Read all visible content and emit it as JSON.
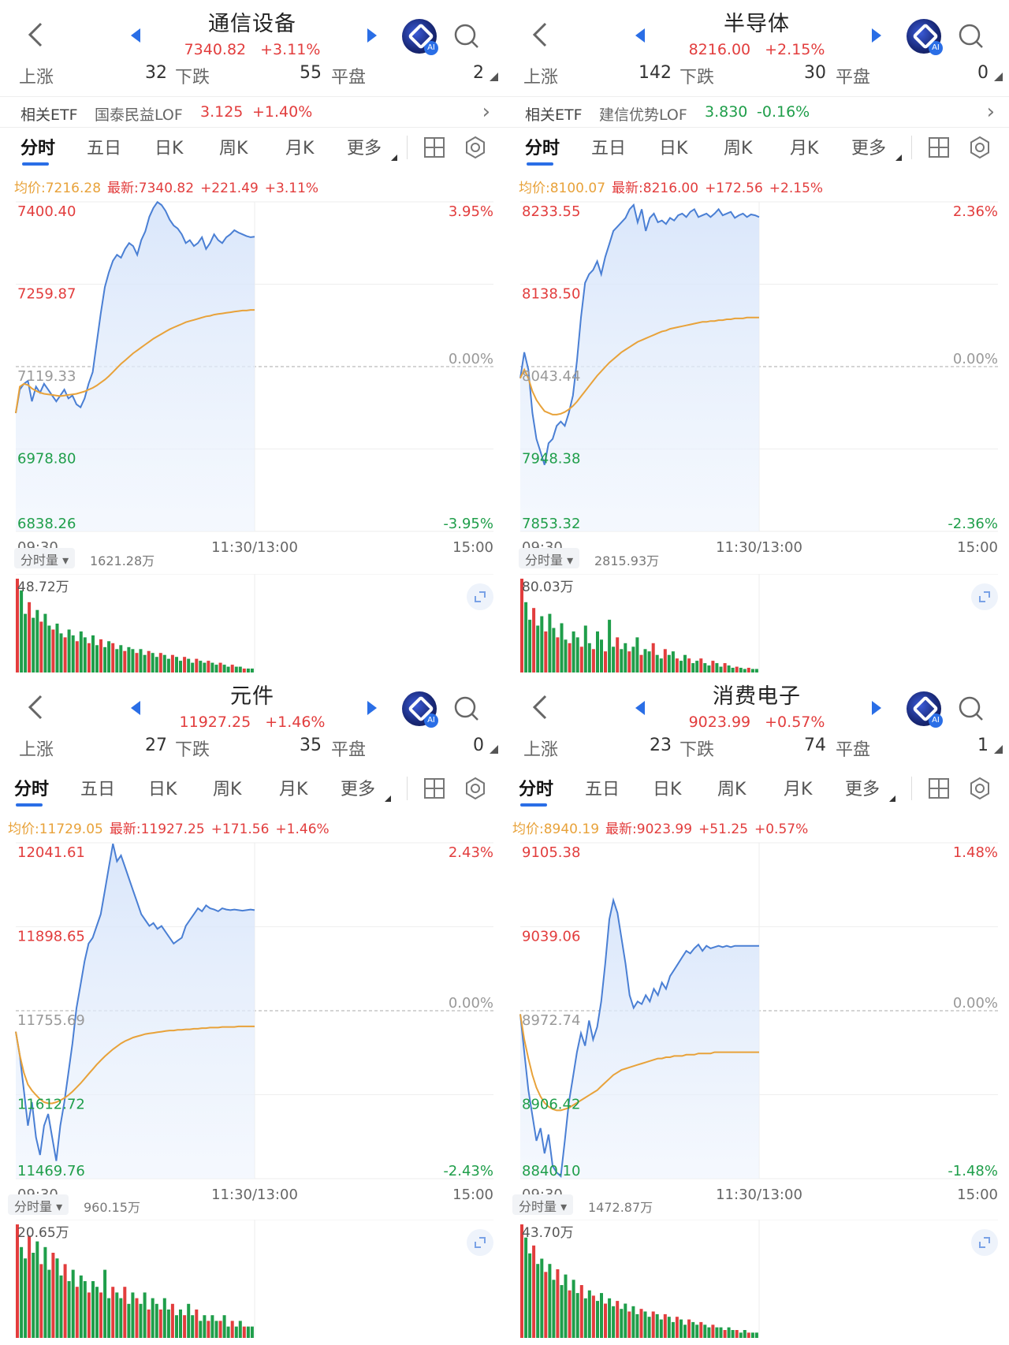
{
  "panels": [
    {
      "title": "通信设备",
      "price": "7340.82",
      "change_pct": "+3.11%",
      "breadth": {
        "up_label": "上涨",
        "up": "32",
        "down_label": "下跌",
        "down": "55",
        "flat_label": "平盘",
        "flat": "2"
      },
      "etf": {
        "label": "相关ETF",
        "name": "国泰民益LOF",
        "price": "3.125",
        "change": "+1.40%",
        "change_color": "#e23d3d"
      },
      "tabs": [
        "分时",
        "五日",
        "日K",
        "周K",
        "月K",
        "更多"
      ],
      "legend": {
        "avg": "均价:7216.28",
        "last": "最新:7340.82",
        "change": "+221.49",
        "pct": "+3.11%"
      },
      "axis": {
        "y_left": [
          "7400.40",
          "7259.87",
          "7119.33",
          "6978.80",
          "6838.26"
        ],
        "y_right": [
          "3.95%",
          "0.00%",
          "-3.95%"
        ],
        "time": [
          "09:30",
          "11:30/13:00",
          "15:00"
        ]
      },
      "volume": {
        "selector": "分时量",
        "total": "1621.28万",
        "max": "48.72万"
      },
      "chart_data": {
        "type": "line",
        "ylim": [
          6838.26,
          7400.4
        ],
        "prev_close": 7119.33,
        "x_range": [
          0,
          240
        ],
        "series": [
          {
            "values": [
              7040,
              7080,
              7090,
              7095,
              7060,
              7085,
              7075,
              7090,
              7080,
              7070,
              7060,
              7070,
              7080,
              7065,
              7070,
              7055,
              7050,
              7065,
              7090,
              7110,
              7160,
              7210,
              7255,
              7280,
              7300,
              7310,
              7305,
              7320,
              7330,
              7325,
              7310,
              7335,
              7350,
              7375,
              7390,
              7400,
              7395,
              7385,
              7370,
              7360,
              7355,
              7345,
              7330,
              7335,
              7325,
              7330,
              7340,
              7320,
              7330,
              7345,
              7335,
              7330,
              7340,
              7345,
              7352,
              7348,
              7345,
              7342,
              7340,
              7341
            ]
          },
          {
            "values": [
              7040,
              7085,
              7090,
              7088,
              7082,
              7078,
              7075,
              7073,
              7072,
              7071,
              7070,
              7069,
              7070,
              7071,
              7072,
              7073,
              7075,
              7077,
              7080,
              7083,
              7087,
              7092,
              7097,
              7103,
              7110,
              7117,
              7124,
              7130,
              7136,
              7142,
              7147,
              7152,
              7157,
              7162,
              7167,
              7171,
              7175,
              7179,
              7183,
              7186,
              7189,
              7192,
              7195,
              7197,
              7199,
              7201,
              7203,
              7205,
              7206,
              7208,
              7209,
              7210,
              7211,
              7212,
              7213,
              7214,
              7215,
              7215,
              7216,
              7216
            ]
          }
        ],
        "volume_values": [
          48,
          42,
          30,
          36,
          28,
          32,
          26,
          30,
          24,
          22,
          25,
          20,
          18,
          22,
          19,
          16,
          21,
          18,
          15,
          19,
          14,
          17,
          13,
          16,
          15,
          12,
          14,
          11,
          13,
          12,
          10,
          12,
          9,
          11,
          10,
          8,
          10,
          9,
          7,
          9,
          8,
          6,
          8,
          7,
          5,
          7,
          6,
          5,
          6,
          5,
          4,
          5,
          4,
          3,
          4,
          3,
          3,
          2,
          2,
          2
        ]
      }
    },
    {
      "title": "半导体",
      "price": "8216.00",
      "change_pct": "+2.15%",
      "breadth": {
        "up_label": "上涨",
        "up": "142",
        "down_label": "下跌",
        "down": "30",
        "flat_label": "平盘",
        "flat": "0"
      },
      "etf": {
        "label": "相关ETF",
        "name": "建信优势LOF",
        "price": "3.830",
        "change": "-0.16%",
        "change_color": "#1f9e4a"
      },
      "tabs": [
        "分时",
        "五日",
        "日K",
        "周K",
        "月K",
        "更多"
      ],
      "legend": {
        "avg": "均价:8100.07",
        "last": "最新:8216.00",
        "change": "+172.56",
        "pct": "+2.15%"
      },
      "axis": {
        "y_left": [
          "8233.55",
          "8138.50",
          "8043.44",
          "7948.38",
          "7853.32"
        ],
        "y_right": [
          "2.36%",
          "0.00%",
          "-2.36%"
        ],
        "time": [
          "09:30",
          "11:30/13:00",
          "15:00"
        ]
      },
      "volume": {
        "selector": "分时量",
        "total": "2815.93万",
        "max": "80.03万"
      },
      "chart_data": {
        "type": "line",
        "ylim": [
          7853.32,
          8233.55
        ],
        "prev_close": 8043.44,
        "x_range": [
          0,
          240
        ],
        "series": [
          {
            "values": [
              8030,
              8060,
              8040,
              7990,
              7960,
              7945,
              7930,
              7955,
              7960,
              7975,
              7980,
              7975,
              7990,
              8010,
              8050,
              8100,
              8140,
              8150,
              8155,
              8165,
              8150,
              8170,
              8185,
              8200,
              8205,
              8210,
              8215,
              8225,
              8230,
              8210,
              8225,
              8200,
              8215,
              8220,
              8210,
              8212,
              8208,
              8215,
              8212,
              8218,
              8220,
              8216,
              8222,
              8225,
              8216,
              8218,
              8220,
              8216,
              8220,
              8225,
              8218,
              8220,
              8222,
              8215,
              8218,
              8220,
              8216,
              8219,
              8218,
              8216
            ]
          },
          {
            "values": [
              8030,
              8040,
              8030,
              8015,
              8005,
              7998,
              7992,
              7990,
              7988,
              7988,
              7989,
              7991,
              7994,
              7998,
              8003,
              8009,
              8015,
              8021,
              8027,
              8033,
              8038,
              8043,
              8048,
              8052,
              8056,
              8060,
              8063,
              8066,
              8069,
              8072,
              8074,
              8076,
              8078,
              8080,
              8082,
              8084,
              8085,
              8087,
              8088,
              8089,
              8090,
              8091,
              8092,
              8093,
              8094,
              8095,
              8095,
              8096,
              8096,
              8097,
              8097,
              8098,
              8098,
              8099,
              8099,
              8099,
              8100,
              8100,
              8100,
              8100
            ]
          }
        ],
        "volume_values": [
          80,
          60,
          45,
          55,
          40,
          48,
          35,
          50,
          38,
          30,
          42,
          28,
          25,
          35,
          30,
          22,
          40,
          25,
          20,
          35,
          28,
          18,
          45,
          22,
          30,
          20,
          25,
          18,
          22,
          30,
          15,
          20,
          18,
          25,
          15,
          12,
          20,
          15,
          18,
          12,
          10,
          15,
          12,
          8,
          10,
          12,
          8,
          6,
          10,
          8,
          5,
          8,
          6,
          4,
          5,
          4,
          3,
          4,
          3,
          3
        ]
      }
    },
    {
      "title": "元件",
      "price": "11927.25",
      "change_pct": "+1.46%",
      "breadth": {
        "up_label": "上涨",
        "up": "27",
        "down_label": "下跌",
        "down": "35",
        "flat_label": "平盘",
        "flat": "0"
      },
      "tabs": [
        "分时",
        "五日",
        "日K",
        "周K",
        "月K",
        "更多"
      ],
      "legend": {
        "avg": "均价:11729.05",
        "last": "最新:11927.25",
        "change": "+171.56",
        "pct": "+1.46%"
      },
      "axis": {
        "y_left": [
          "12041.61",
          "11898.65",
          "11755.69",
          "11612.72",
          "11469.76"
        ],
        "y_right": [
          "2.43%",
          "0.00%",
          "-2.43%"
        ],
        "time": [
          "09:30",
          "11:30/13:00",
          "15:00"
        ]
      },
      "volume": {
        "selector": "分时量",
        "total": "960.15万",
        "max": "20.65万"
      },
      "chart_data": {
        "type": "line",
        "ylim": [
          11469.76,
          12041.61
        ],
        "prev_close": 11755.69,
        "x_range": [
          0,
          240
        ],
        "series": [
          {
            "values": [
              11720,
              11680,
              11620,
              11560,
              11600,
              11540,
              11510,
              11560,
              11580,
              11540,
              11500,
              11560,
              11600,
              11650,
              11700,
              11760,
              11800,
              11840,
              11870,
              11880,
              11900,
              11920,
              11960,
              12000,
              12040,
              12010,
              12020,
              12000,
              11980,
              11960,
              11940,
              11920,
              11910,
              11900,
              11905,
              11895,
              11900,
              11890,
              11880,
              11870,
              11875,
              11880,
              11900,
              11910,
              11920,
              11930,
              11925,
              11935,
              11930,
              11928,
              11925,
              11930,
              11928,
              11927,
              11928,
              11927,
              11926,
              11927,
              11928,
              11927
            ]
          },
          {
            "values": [
              11720,
              11680,
              11650,
              11630,
              11620,
              11612,
              11605,
              11600,
              11598,
              11598,
              11600,
              11603,
              11607,
              11612,
              11618,
              11625,
              11632,
              11640,
              11648,
              11656,
              11664,
              11671,
              11678,
              11684,
              11690,
              11695,
              11700,
              11704,
              11707,
              11710,
              11712,
              11714,
              11716,
              11717,
              11718,
              11719,
              11720,
              11721,
              11722,
              11722,
              11723,
              11723,
              11724,
              11724,
              11725,
              11725,
              11726,
              11726,
              11727,
              11727,
              11727,
              11728,
              11728,
              11728,
              11728,
              11729,
              11729,
              11729,
              11729,
              11729
            ]
          }
        ],
        "volume_values": [
          20,
          16,
          14,
          18,
          15,
          17,
          13,
          16,
          12,
          15,
          14,
          11,
          13,
          10,
          12,
          9,
          11,
          10,
          8,
          10,
          9,
          8,
          12,
          7,
          9,
          8,
          7,
          9,
          6,
          8,
          7,
          6,
          8,
          5,
          7,
          6,
          5,
          7,
          5,
          6,
          4,
          5,
          4,
          6,
          4,
          5,
          3,
          4,
          3,
          4,
          3,
          3,
          4,
          2,
          3,
          2,
          3,
          2,
          2,
          2
        ]
      }
    },
    {
      "title": "消费电子",
      "price": "9023.99",
      "change_pct": "+0.57%",
      "breadth": {
        "up_label": "上涨",
        "up": "23",
        "down_label": "下跌",
        "down": "74",
        "flat_label": "平盘",
        "flat": "1"
      },
      "tabs": [
        "分时",
        "五日",
        "日K",
        "周K",
        "月K",
        "更多"
      ],
      "legend": {
        "avg": "均价:8940.19",
        "last": "最新:9023.99",
        "change": "+51.25",
        "pct": "+0.57%"
      },
      "axis": {
        "y_left": [
          "9105.38",
          "9039.06",
          "8972.74",
          "8906.42",
          "8840.10"
        ],
        "y_right": [
          "1.48%",
          "0.00%",
          "-1.48%"
        ],
        "time": [
          "09:30",
          "11:30/13:00",
          "15:00"
        ]
      },
      "volume": {
        "selector": "分时量",
        "total": "1472.87万",
        "max": "43.70万"
      },
      "chart_data": {
        "type": "line",
        "ylim": [
          8840.1,
          9105.38
        ],
        "prev_close": 8972.74,
        "x_range": [
          0,
          240
        ],
        "series": [
          {
            "values": [
              8970,
              8940,
              8910,
              8890,
              8870,
              8880,
              8860,
              8875,
              8850,
              8845,
              8842,
              8870,
              8900,
              8920,
              8940,
              8955,
              8945,
              8965,
              8950,
              8960,
              8980,
              9010,
              9045,
              9060,
              9050,
              9030,
              9010,
              8985,
              8975,
              8980,
              8978,
              8985,
              8980,
              8990,
              8985,
              8995,
              8990,
              9000,
              9005,
              9010,
              9015,
              9020,
              9018,
              9022,
              9025,
              9020,
              9024,
              9022,
              9023,
              9024,
              9023,
              9024,
              9023,
              9024,
              9024,
              9024,
              9024,
              9024,
              9024,
              9024
            ]
          },
          {
            "values": [
              8970,
              8950,
              8935,
              8922,
              8912,
              8905,
              8900,
              8897,
              8895,
              8894,
              8894,
              8895,
              8896,
              8898,
              8900,
              8902,
              8904,
              8906,
              8908,
              8910,
              8913,
              8916,
              8919,
              8922,
              8924,
              8926,
              8927,
              8928,
              8929,
              8930,
              8931,
              8932,
              8933,
              8934,
              8935,
              8935,
              8936,
              8936,
              8937,
              8937,
              8937,
              8938,
              8938,
              8938,
              8939,
              8939,
              8939,
              8939,
              8940,
              8940,
              8940,
              8940,
              8940,
              8940,
              8940,
              8940,
              8940,
              8940,
              8940,
              8940
            ]
          }
        ],
        "volume_values": [
          43,
          38,
          32,
          35,
          28,
          30,
          25,
          28,
          22,
          26,
          20,
          24,
          18,
          22,
          17,
          20,
          15,
          18,
          16,
          14,
          17,
          13,
          15,
          12,
          14,
          11,
          13,
          10,
          12,
          9,
          11,
          10,
          8,
          10,
          9,
          7,
          9,
          8,
          6,
          8,
          7,
          5,
          7,
          6,
          5,
          6,
          5,
          4,
          5,
          4,
          4,
          3,
          4,
          3,
          3,
          2,
          3,
          2,
          2,
          2
        ]
      }
    }
  ],
  "colors": {
    "up": "#e23d3d",
    "down": "#1f9e4a",
    "price_line": "#4a7fd4",
    "avg_line": "#e8a23a",
    "accent": "#2a6ee6"
  },
  "icons": {
    "back": "chevron-left-icon",
    "prev": "triangle-left-icon",
    "next": "triangle-right-icon",
    "ai": "ai-assistant-icon",
    "search": "search-icon",
    "grid": "grid-icon",
    "settings": "gear-icon",
    "expand": "expand-icon"
  }
}
